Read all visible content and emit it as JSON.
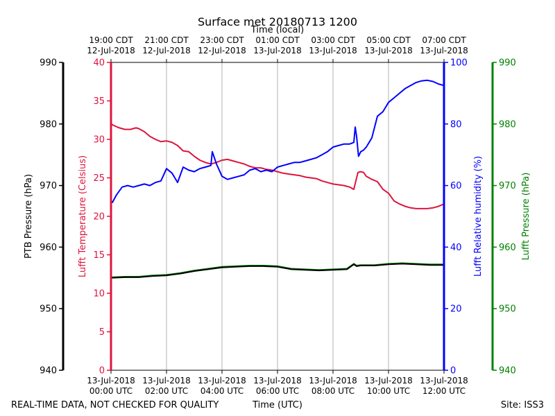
{
  "chart_data": {
    "type": "line",
    "title": "Surface met 20180713 1200",
    "top_axis_label": "Time (local)",
    "bottom_axis_label": "Time (UTC)",
    "footer_left": "REAL-TIME DATA, NOT CHECKED FOR QUALITY",
    "footer_right": "Site: ISS3",
    "x_range_hours": [
      0,
      12
    ],
    "grid": true,
    "bottom_ticks": [
      {
        "h": 0,
        "line1": "13-Jul-2018",
        "line2": "00:00 UTC"
      },
      {
        "h": 2,
        "line1": "13-Jul-2018",
        "line2": "02:00 UTC"
      },
      {
        "h": 4,
        "line1": "13-Jul-2018",
        "line2": "04:00 UTC"
      },
      {
        "h": 6,
        "line1": "13-Jul-2018",
        "line2": "06:00 UTC"
      },
      {
        "h": 8,
        "line1": "13-Jul-2018",
        "line2": "08:00 UTC"
      },
      {
        "h": 10,
        "line1": "13-Jul-2018",
        "line2": "10:00 UTC"
      },
      {
        "h": 12,
        "line1": "13-Jul-2018",
        "line2": "12:00 UTC"
      }
    ],
    "top_ticks": [
      {
        "h": 0,
        "line1": "19:00 CDT",
        "line2": "12-Jul-2018"
      },
      {
        "h": 2,
        "line1": "21:00 CDT",
        "line2": "12-Jul-2018"
      },
      {
        "h": 4,
        "line1": "23:00 CDT",
        "line2": "12-Jul-2018"
      },
      {
        "h": 6,
        "line1": "01:00 CDT",
        "line2": "13-Jul-2018"
      },
      {
        "h": 8,
        "line1": "03:00 CDT",
        "line2": "13-Jul-2018"
      },
      {
        "h": 10,
        "line1": "05:00 CDT",
        "line2": "13-Jul-2018"
      },
      {
        "h": 12,
        "line1": "07:00 CDT",
        "line2": "13-Jul-2018"
      }
    ],
    "axes": {
      "ptb_pressure": {
        "label": "PTB Pressure (hPa)",
        "color": "#000000",
        "ylim": [
          940,
          990
        ],
        "ticks": [
          940,
          950,
          960,
          970,
          980,
          990
        ]
      },
      "temperature": {
        "label": "Lufft Temperature (Celsius)",
        "color": "#dc143c",
        "ylim": [
          0,
          40
        ],
        "ticks": [
          0,
          5,
          10,
          15,
          20,
          25,
          30,
          35,
          40
        ]
      },
      "humidity": {
        "label": "Lufft Relative humidity (%)",
        "color": "#0000ff",
        "ylim": [
          0,
          100
        ],
        "ticks": [
          0,
          20,
          40,
          60,
          80,
          100
        ]
      },
      "lufft_pressure": {
        "label": "Lufft Pressure (hPa)",
        "color": "#008000",
        "ylim": [
          940,
          990
        ],
        "ticks": [
          940,
          950,
          960,
          970,
          980,
          990
        ]
      }
    },
    "series": [
      {
        "name": "Lufft Temperature",
        "axis": "temperature",
        "color": "#dc143c",
        "x": [
          0,
          0.1,
          0.3,
          0.5,
          0.7,
          0.9,
          1.0,
          1.2,
          1.4,
          1.6,
          1.8,
          2.0,
          2.2,
          2.4,
          2.6,
          2.8,
          3.0,
          3.2,
          3.4,
          3.6,
          3.8,
          4.0,
          4.2,
          4.4,
          4.6,
          4.8,
          5.0,
          5.2,
          5.4,
          5.6,
          5.8,
          6.0,
          6.2,
          6.4,
          6.6,
          6.8,
          7.0,
          7.2,
          7.4,
          7.6,
          7.8,
          8.0,
          8.2,
          8.4,
          8.6,
          8.75,
          8.85,
          8.9,
          9.0,
          9.1,
          9.2,
          9.4,
          9.6,
          9.8,
          10.0,
          10.2,
          10.4,
          10.6,
          10.8,
          11.0,
          11.2,
          11.4,
          11.6,
          11.8,
          12.0
        ],
        "y": [
          32.0,
          31.8,
          31.5,
          31.3,
          31.3,
          31.5,
          31.4,
          31.0,
          30.4,
          30.0,
          29.7,
          29.8,
          29.6,
          29.2,
          28.5,
          28.4,
          27.8,
          27.3,
          27.0,
          26.8,
          27.0,
          27.3,
          27.4,
          27.2,
          27.0,
          26.8,
          26.5,
          26.3,
          26.3,
          26.1,
          26.0,
          25.8,
          25.6,
          25.5,
          25.4,
          25.3,
          25.1,
          25.0,
          24.9,
          24.6,
          24.4,
          24.2,
          24.1,
          24.0,
          23.8,
          23.5,
          25.0,
          25.7,
          25.8,
          25.7,
          25.2,
          24.8,
          24.5,
          23.5,
          23.0,
          22.0,
          21.6,
          21.3,
          21.1,
          21.0,
          21.0,
          21.0,
          21.1,
          21.3,
          21.6
        ]
      },
      {
        "name": "Lufft Relative humidity",
        "axis": "humidity",
        "color": "#0000ff",
        "x": [
          0,
          0.05,
          0.2,
          0.4,
          0.6,
          0.8,
          1.0,
          1.2,
          1.4,
          1.6,
          1.8,
          2.0,
          2.2,
          2.4,
          2.6,
          2.8,
          3.0,
          3.2,
          3.4,
          3.6,
          3.65,
          3.8,
          4.0,
          4.2,
          4.4,
          4.6,
          4.8,
          5.0,
          5.2,
          5.4,
          5.6,
          5.8,
          6.0,
          6.2,
          6.4,
          6.6,
          6.8,
          7.0,
          7.2,
          7.4,
          7.6,
          7.8,
          8.0,
          8.2,
          8.4,
          8.6,
          8.75,
          8.8,
          8.85,
          8.92,
          9.0,
          9.1,
          9.2,
          9.4,
          9.6,
          9.8,
          10.0,
          10.2,
          10.4,
          10.6,
          10.8,
          11.0,
          11.2,
          11.4,
          11.6,
          11.8,
          12.0
        ],
        "y": [
          55.0,
          54.5,
          57.0,
          59.5,
          60.0,
          59.5,
          60.0,
          60.5,
          60.0,
          61.0,
          61.5,
          65.5,
          64.0,
          61.0,
          66.0,
          65.0,
          64.5,
          65.5,
          66.0,
          66.5,
          71.0,
          67.0,
          63.0,
          62.0,
          62.5,
          63.0,
          63.5,
          65.0,
          65.5,
          64.5,
          65.0,
          64.5,
          66.0,
          66.5,
          67.0,
          67.5,
          67.5,
          68.0,
          68.5,
          69.0,
          70.0,
          71.0,
          72.5,
          73.0,
          73.5,
          73.5,
          74.0,
          79.0,
          76.0,
          69.5,
          71.0,
          71.5,
          72.5,
          75.5,
          82.5,
          84.0,
          87.0,
          88.5,
          90.0,
          91.5,
          92.5,
          93.5,
          94.0,
          94.2,
          93.8,
          93.0,
          92.5
        ]
      },
      {
        "name": "Lufft Pressure",
        "axis": "lufft_pressure",
        "color": "#008000",
        "x": [
          0,
          0.5,
          1.0,
          1.5,
          2.0,
          2.5,
          3.0,
          3.5,
          4.0,
          4.5,
          5.0,
          5.5,
          6.0,
          6.5,
          7.0,
          7.5,
          8.0,
          8.5,
          8.75,
          8.85,
          9.0,
          9.5,
          10.0,
          10.5,
          11.0,
          11.5,
          12.0
        ],
        "y": [
          955.1,
          955.2,
          955.2,
          955.4,
          955.5,
          955.8,
          956.2,
          956.5,
          956.8,
          956.9,
          957.0,
          957.0,
          956.9,
          956.5,
          956.4,
          956.3,
          956.4,
          956.5,
          957.3,
          957.0,
          957.1,
          957.1,
          957.3,
          957.4,
          957.3,
          957.2,
          957.2
        ]
      },
      {
        "name": "PTB Pressure",
        "axis": "ptb_pressure",
        "color": "#000000",
        "x": [
          0,
          0.5,
          1.0,
          1.5,
          2.0,
          2.5,
          3.0,
          3.5,
          4.0,
          4.5,
          5.0,
          5.5,
          6.0,
          6.5,
          7.0,
          7.5,
          8.0,
          8.5,
          8.75,
          8.85,
          9.0,
          9.5,
          10.0,
          10.5,
          11.0,
          11.5,
          12.0
        ],
        "y": [
          955.0,
          955.1,
          955.1,
          955.3,
          955.4,
          955.7,
          956.1,
          956.4,
          956.7,
          956.8,
          956.9,
          956.9,
          956.8,
          956.4,
          956.3,
          956.2,
          956.3,
          956.4,
          957.2,
          956.9,
          957.0,
          957.0,
          957.2,
          957.3,
          957.2,
          957.1,
          957.1
        ]
      }
    ]
  }
}
